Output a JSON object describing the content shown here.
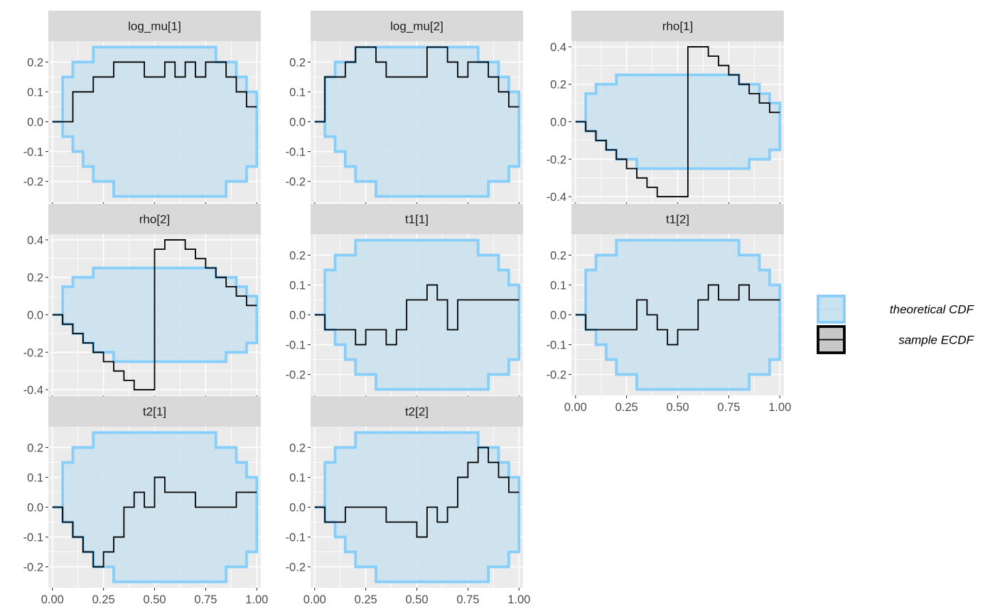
{
  "chart_data": {
    "type": "line",
    "description_kind": "faceted ECDF difference plot",
    "facet_rows": 3,
    "facet_cols": 3,
    "grid": true,
    "legend_position": "right",
    "x": [
      0,
      0.05,
      0.1,
      0.15,
      0.2,
      0.25,
      0.3,
      0.35,
      0.4,
      0.45,
      0.5,
      0.55,
      0.6,
      0.65,
      0.7,
      0.75,
      0.8,
      0.85,
      0.9,
      0.95,
      1.0
    ],
    "xticks": [
      "0.00",
      "0.25",
      "0.50",
      "0.75",
      "1.00"
    ],
    "xtick_values": [
      0,
      0.25,
      0.5,
      0.75,
      1.0
    ],
    "xlim": [
      -0.02,
      1.02
    ],
    "legend": [
      {
        "label": "theoretical CDF",
        "key": "theoretical",
        "color": "#87cefa",
        "fill": "#c9e2ee"
      },
      {
        "label": "sample ECDF",
        "key": "sample",
        "color": "#000000",
        "fill": "#c8c8c8"
      }
    ],
    "colors": {
      "panel_bg": "#ebebeb",
      "grid": "#ffffff",
      "strip_bg": "#d9d9d9",
      "band_fill": "#c9e2ee",
      "band_line": "#87cefa",
      "ecdf_line": "#000000"
    },
    "facets": [
      {
        "label": "log_mu[1]",
        "ylim": [
          -0.27,
          0.27
        ],
        "yticks": [
          0.2,
          0.1,
          0.0,
          -0.1,
          -0.2
        ],
        "ytick_labels": [
          "0.2",
          "0.1",
          "0.0",
          "-0.1",
          "-0.2"
        ],
        "band_upper": [
          0,
          0.15,
          0.2,
          0.2,
          0.25,
          0.25,
          0.25,
          0.25,
          0.25,
          0.25,
          0.25,
          0.25,
          0.25,
          0.25,
          0.25,
          0.25,
          0.2,
          0.2,
          0.15,
          0.1,
          0.0
        ],
        "band_lower": [
          0,
          -0.05,
          -0.1,
          -0.15,
          -0.2,
          -0.2,
          -0.25,
          -0.25,
          -0.25,
          -0.25,
          -0.25,
          -0.25,
          -0.25,
          -0.25,
          -0.25,
          -0.25,
          -0.25,
          -0.2,
          -0.2,
          -0.15,
          0
        ],
        "ecdf": [
          0,
          0,
          0.1,
          0.1,
          0.15,
          0.15,
          0.2,
          0.2,
          0.2,
          0.15,
          0.15,
          0.2,
          0.15,
          0.2,
          0.15,
          0.2,
          0.2,
          0.15,
          0.1,
          0.05,
          0.05
        ]
      },
      {
        "label": "log_mu[2]",
        "ylim": [
          -0.27,
          0.27
        ],
        "yticks": [
          0.2,
          0.1,
          0.0,
          -0.1,
          -0.2
        ],
        "ytick_labels": [
          "0.2",
          "0.1",
          "0.0",
          "-0.1",
          "-0.2"
        ],
        "band_upper": [
          0,
          0.15,
          0.2,
          0.2,
          0.25,
          0.25,
          0.25,
          0.25,
          0.25,
          0.25,
          0.25,
          0.25,
          0.25,
          0.25,
          0.25,
          0.25,
          0.2,
          0.2,
          0.15,
          0.1,
          0.0
        ],
        "band_lower": [
          0,
          -0.05,
          -0.1,
          -0.15,
          -0.2,
          -0.2,
          -0.25,
          -0.25,
          -0.25,
          -0.25,
          -0.25,
          -0.25,
          -0.25,
          -0.25,
          -0.25,
          -0.25,
          -0.25,
          -0.2,
          -0.2,
          -0.15,
          0
        ],
        "ecdf": [
          0,
          0.15,
          0.15,
          0.2,
          0.25,
          0.25,
          0.2,
          0.15,
          0.15,
          0.15,
          0.15,
          0.25,
          0.25,
          0.2,
          0.15,
          0.2,
          0.2,
          0.15,
          0.1,
          0.05,
          0.05
        ]
      },
      {
        "label": "rho[1]",
        "ylim": [
          -0.43,
          0.43
        ],
        "yticks": [
          0.4,
          0.2,
          0.0,
          -0.2,
          -0.4
        ],
        "ytick_labels": [
          "0.4",
          "0.2",
          "0.0",
          "-0.2",
          "-0.4"
        ],
        "band_upper": [
          0,
          0.15,
          0.2,
          0.2,
          0.25,
          0.25,
          0.25,
          0.25,
          0.25,
          0.25,
          0.25,
          0.25,
          0.25,
          0.25,
          0.25,
          0.25,
          0.2,
          0.2,
          0.15,
          0.1,
          0.0
        ],
        "band_lower": [
          0,
          -0.05,
          -0.1,
          -0.15,
          -0.2,
          -0.2,
          -0.25,
          -0.25,
          -0.25,
          -0.25,
          -0.25,
          -0.25,
          -0.25,
          -0.25,
          -0.25,
          -0.25,
          -0.25,
          -0.2,
          -0.2,
          -0.15,
          0
        ],
        "ecdf": [
          0,
          -0.05,
          -0.1,
          -0.15,
          -0.2,
          -0.25,
          -0.3,
          -0.35,
          -0.4,
          -0.4,
          -0.4,
          0.4,
          0.4,
          0.35,
          0.3,
          0.25,
          0.2,
          0.15,
          0.1,
          0.05,
          0.05
        ]
      },
      {
        "label": "rho[2]",
        "ylim": [
          -0.43,
          0.43
        ],
        "yticks": [
          0.4,
          0.2,
          0.0,
          -0.2,
          -0.4
        ],
        "ytick_labels": [
          "0.4",
          "0.2",
          "0.0",
          "-0.2",
          "-0.4"
        ],
        "band_upper": [
          0,
          0.15,
          0.2,
          0.2,
          0.25,
          0.25,
          0.25,
          0.25,
          0.25,
          0.25,
          0.25,
          0.25,
          0.25,
          0.25,
          0.25,
          0.25,
          0.2,
          0.2,
          0.15,
          0.1,
          0.0
        ],
        "band_lower": [
          0,
          -0.05,
          -0.1,
          -0.15,
          -0.2,
          -0.2,
          -0.25,
          -0.25,
          -0.25,
          -0.25,
          -0.25,
          -0.25,
          -0.25,
          -0.25,
          -0.25,
          -0.25,
          -0.25,
          -0.2,
          -0.2,
          -0.15,
          0
        ],
        "ecdf": [
          0,
          -0.05,
          -0.1,
          -0.15,
          -0.2,
          -0.25,
          -0.3,
          -0.35,
          -0.4,
          -0.4,
          0.35,
          0.4,
          0.4,
          0.35,
          0.3,
          0.25,
          0.2,
          0.15,
          0.1,
          0.05,
          0.05
        ]
      },
      {
        "label": "t1[1]",
        "ylim": [
          -0.27,
          0.27
        ],
        "yticks": [
          0.2,
          0.1,
          0.0,
          -0.1,
          -0.2
        ],
        "ytick_labels": [
          "0.2",
          "0.1",
          "0.0",
          "-0.1",
          "-0.2"
        ],
        "band_upper": [
          0,
          0.15,
          0.2,
          0.2,
          0.25,
          0.25,
          0.25,
          0.25,
          0.25,
          0.25,
          0.25,
          0.25,
          0.25,
          0.25,
          0.25,
          0.25,
          0.2,
          0.2,
          0.15,
          0.1,
          0.0
        ],
        "band_lower": [
          0,
          -0.05,
          -0.1,
          -0.15,
          -0.2,
          -0.2,
          -0.25,
          -0.25,
          -0.25,
          -0.25,
          -0.25,
          -0.25,
          -0.25,
          -0.25,
          -0.25,
          -0.25,
          -0.25,
          -0.2,
          -0.2,
          -0.15,
          0
        ],
        "ecdf": [
          0,
          -0.05,
          -0.05,
          -0.05,
          -0.1,
          -0.05,
          -0.05,
          -0.1,
          -0.05,
          0.05,
          0.05,
          0.1,
          0.05,
          -0.05,
          0.05,
          0.05,
          0.05,
          0.05,
          0.05,
          0.05,
          0.05
        ]
      },
      {
        "label": "t1[2]",
        "ylim": [
          -0.27,
          0.27
        ],
        "yticks": [
          0.2,
          0.1,
          0.0,
          -0.1,
          -0.2
        ],
        "ytick_labels": [
          "0.2",
          "0.1",
          "0.0",
          "-0.1",
          "-0.2"
        ],
        "band_upper": [
          0,
          0.15,
          0.2,
          0.2,
          0.25,
          0.25,
          0.25,
          0.25,
          0.25,
          0.25,
          0.25,
          0.25,
          0.25,
          0.25,
          0.25,
          0.25,
          0.2,
          0.2,
          0.15,
          0.1,
          0.0
        ],
        "band_lower": [
          0,
          -0.05,
          -0.1,
          -0.15,
          -0.2,
          -0.2,
          -0.25,
          -0.25,
          -0.25,
          -0.25,
          -0.25,
          -0.25,
          -0.25,
          -0.25,
          -0.25,
          -0.25,
          -0.25,
          -0.2,
          -0.2,
          -0.15,
          0
        ],
        "ecdf": [
          0,
          -0.05,
          -0.05,
          -0.05,
          -0.05,
          -0.05,
          0.05,
          0.0,
          -0.05,
          -0.1,
          -0.05,
          -0.05,
          0.05,
          0.1,
          0.05,
          0.05,
          0.1,
          0.05,
          0.05,
          0.05,
          0.05
        ]
      },
      {
        "label": "t2[1]",
        "ylim": [
          -0.27,
          0.27
        ],
        "yticks": [
          0.2,
          0.1,
          0.0,
          -0.1,
          -0.2
        ],
        "ytick_labels": [
          "0.2",
          "0.1",
          "0.0",
          "-0.1",
          "-0.2"
        ],
        "band_upper": [
          0,
          0.15,
          0.2,
          0.2,
          0.25,
          0.25,
          0.25,
          0.25,
          0.25,
          0.25,
          0.25,
          0.25,
          0.25,
          0.25,
          0.25,
          0.25,
          0.2,
          0.2,
          0.15,
          0.1,
          0.0
        ],
        "band_lower": [
          0,
          -0.05,
          -0.1,
          -0.15,
          -0.2,
          -0.2,
          -0.25,
          -0.25,
          -0.25,
          -0.25,
          -0.25,
          -0.25,
          -0.25,
          -0.25,
          -0.25,
          -0.25,
          -0.25,
          -0.2,
          -0.2,
          -0.15,
          0
        ],
        "ecdf": [
          0,
          -0.05,
          -0.1,
          -0.15,
          -0.2,
          -0.15,
          -0.1,
          0.0,
          0.05,
          0.0,
          0.1,
          0.05,
          0.05,
          0.05,
          0.0,
          0.0,
          0.0,
          0.0,
          0.05,
          0.05,
          0.05
        ]
      },
      {
        "label": "t2[2]",
        "ylim": [
          -0.27,
          0.27
        ],
        "yticks": [
          0.2,
          0.1,
          0.0,
          -0.1,
          -0.2
        ],
        "ytick_labels": [
          "0.2",
          "0.1",
          "0.0",
          "-0.1",
          "-0.2"
        ],
        "band_upper": [
          0,
          0.15,
          0.2,
          0.2,
          0.25,
          0.25,
          0.25,
          0.25,
          0.25,
          0.25,
          0.25,
          0.25,
          0.25,
          0.25,
          0.25,
          0.25,
          0.2,
          0.2,
          0.15,
          0.1,
          0.0
        ],
        "band_lower": [
          0,
          -0.05,
          -0.1,
          -0.15,
          -0.2,
          -0.2,
          -0.25,
          -0.25,
          -0.25,
          -0.25,
          -0.25,
          -0.25,
          -0.25,
          -0.25,
          -0.25,
          -0.25,
          -0.25,
          -0.2,
          -0.2,
          -0.15,
          0
        ],
        "ecdf": [
          0,
          -0.05,
          -0.05,
          0.0,
          0.0,
          0.0,
          0.0,
          -0.05,
          -0.05,
          -0.05,
          -0.1,
          0.0,
          -0.05,
          0.0,
          0.1,
          0.15,
          0.2,
          0.15,
          0.1,
          0.05,
          0.05
        ]
      }
    ]
  }
}
